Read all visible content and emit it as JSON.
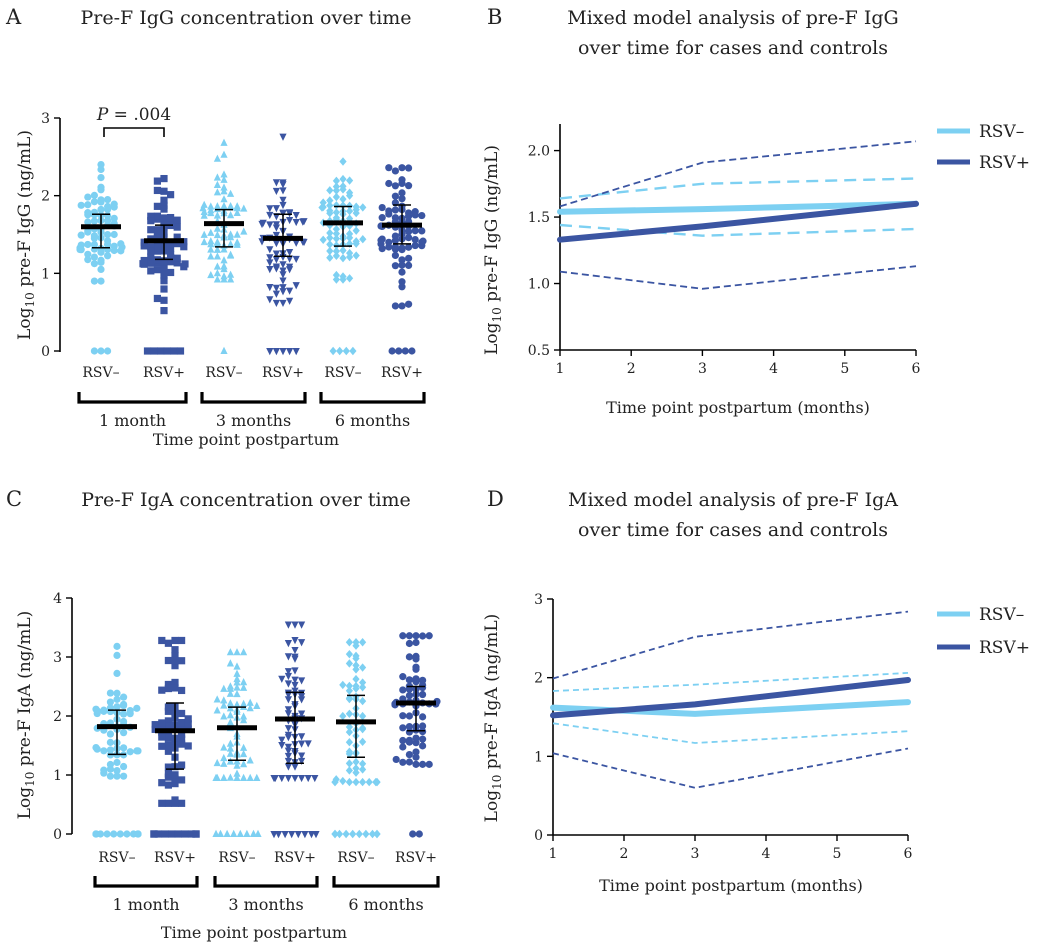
{
  "colors": {
    "rsv_neg": "#7dd0f2",
    "rsv_pos": "#3b55a2",
    "median": "#000000"
  },
  "chart_data": [
    {
      "panel": "A",
      "type": "scatter",
      "title": "Pre-F IgG concentration over time",
      "ylabel": "Log10 pre-F IgG (ng/mL)",
      "ylabel_main": "Log",
      "ylabel_sub": "10",
      "ylabel_rest": " pre-F IgG (ng/mL)",
      "xlabel": "Time point postpartum",
      "ylim": [
        0,
        3
      ],
      "yticks": [
        0,
        1,
        2,
        3
      ],
      "categories": [
        "RSV–",
        "RSV+",
        "RSV–",
        "RSV+",
        "RSV–",
        "RSV+"
      ],
      "timepoints": [
        "1 month",
        "3 months",
        "6 months"
      ],
      "annotation": {
        "p_italic": "P",
        "p_rest": " = .004"
      },
      "groups": [
        {
          "name": "RSV–",
          "timepoint": "1 month",
          "marker": "circle",
          "median": 1.6,
          "q1": 1.33,
          "q3": 1.76,
          "n": 70,
          "zeros": 3,
          "min": 0.9,
          "max": 2.4
        },
        {
          "name": "RSV+",
          "timepoint": "1 month",
          "marker": "square",
          "median": 1.42,
          "q1": 1.18,
          "q3": 1.62,
          "n": 68,
          "zeros": 6,
          "min": 0.52,
          "max": 2.22
        },
        {
          "name": "RSV–",
          "timepoint": "3 months",
          "marker": "triangle-up",
          "median": 1.64,
          "q1": 1.34,
          "q3": 1.82,
          "n": 72,
          "zeros": 1,
          "min": 0.92,
          "max": 2.68
        },
        {
          "name": "RSV+",
          "timepoint": "3 months",
          "marker": "triangle-down",
          "median": 1.45,
          "q1": 1.22,
          "q3": 1.76,
          "n": 72,
          "zeros": 5,
          "min": 0.62,
          "max": 2.76
        },
        {
          "name": "RSV–",
          "timepoint": "6 months",
          "marker": "diamond",
          "median": 1.65,
          "q1": 1.35,
          "q3": 1.86,
          "n": 74,
          "zeros": 4,
          "min": 0.92,
          "max": 2.44
        },
        {
          "name": "RSV+",
          "timepoint": "6 months",
          "marker": "circle",
          "median": 1.62,
          "q1": 1.38,
          "q3": 1.88,
          "n": 72,
          "zeros": 4,
          "min": 0.58,
          "max": 2.36
        }
      ]
    },
    {
      "panel": "B",
      "type": "line",
      "title_lines": [
        "Mixed model analysis of pre-F IgG",
        "over time for cases and controls"
      ],
      "ylabel": "Log10 pre-F IgG (ng/mL)",
      "ylabel_main": "Log",
      "ylabel_sub": "10",
      "ylabel_rest": " pre-F IgG (ng/mL)",
      "xlabel": "Time point postpartum (months)",
      "xlim": [
        1,
        6
      ],
      "xticks": [
        1,
        2,
        3,
        4,
        5,
        6
      ],
      "ylim": [
        0.5,
        2.2
      ],
      "yticks": [
        0.5,
        1.0,
        1.5,
        2.0
      ],
      "ytick_labels": [
        "0.5",
        "1.0",
        "1.5",
        "2.0"
      ],
      "x": [
        1,
        3,
        6
      ],
      "series": [
        {
          "name": "RSV–",
          "values": [
            1.54,
            1.56,
            1.6
          ],
          "lower": [
            1.44,
            1.36,
            1.41
          ],
          "upper": [
            1.64,
            1.75,
            1.79
          ]
        },
        {
          "name": "RSV+",
          "values": [
            1.33,
            1.43,
            1.6
          ],
          "lower": [
            1.09,
            0.96,
            1.13
          ],
          "upper": [
            1.58,
            1.91,
            2.07
          ]
        }
      ]
    },
    {
      "panel": "C",
      "type": "scatter",
      "title": "Pre-F IgA concentration over time",
      "ylabel": "Log10 pre-F IgA (ng/mL)",
      "ylabel_main": "Log",
      "ylabel_sub": "10",
      "ylabel_rest": " pre-F IgA (ng/mL)",
      "xlabel": "Time point postpartum",
      "ylim": [
        0,
        4
      ],
      "yticks": [
        0,
        1,
        2,
        3,
        4
      ],
      "categories": [
        "RSV–",
        "RSV+",
        "RSV–",
        "RSV+",
        "RSV–",
        "RSV+"
      ],
      "timepoints": [
        "1 month",
        "3 months",
        "6 months"
      ],
      "groups": [
        {
          "name": "RSV–",
          "timepoint": "1 month",
          "marker": "circle",
          "median": 1.82,
          "q1": 1.35,
          "q3": 2.1,
          "n": 60,
          "zeros": 14,
          "min": 0.98,
          "max": 3.18
        },
        {
          "name": "RSV+",
          "timepoint": "1 month",
          "marker": "square",
          "median": 1.75,
          "q1": 1.1,
          "q3": 2.22,
          "n": 66,
          "zeros": 12,
          "min": 0.52,
          "max": 3.28
        },
        {
          "name": "RSV–",
          "timepoint": "3 months",
          "marker": "triangle-up",
          "median": 1.8,
          "q1": 1.25,
          "q3": 2.15,
          "n": 66,
          "zeros": 8,
          "min": 0.95,
          "max": 3.08
        },
        {
          "name": "RSV+",
          "timepoint": "3 months",
          "marker": "triangle-down",
          "median": 1.95,
          "q1": 1.2,
          "q3": 2.4,
          "n": 66,
          "zeros": 8,
          "min": 0.95,
          "max": 3.55
        },
        {
          "name": "RSV–",
          "timepoint": "6 months",
          "marker": "diamond",
          "median": 1.9,
          "q1": 1.3,
          "q3": 2.35,
          "n": 62,
          "zeros": 10,
          "min": 0.88,
          "max": 3.25
        },
        {
          "name": "RSV+",
          "timepoint": "6 months",
          "marker": "circle",
          "median": 2.22,
          "q1": 1.75,
          "q3": 2.5,
          "n": 66,
          "zeros": 2,
          "min": 1.18,
          "max": 3.36
        }
      ]
    },
    {
      "panel": "D",
      "type": "line",
      "title_lines": [
        "Mixed model analysis of pre-F IgA",
        "over time for cases and controls"
      ],
      "ylabel": "Log10 pre-F IgA (ng/mL)",
      "ylabel_main": "Log",
      "ylabel_sub": "10",
      "ylabel_rest": " pre-F IgA (ng/mL)",
      "xlabel": "Time point postpartum (months)",
      "xlim": [
        1,
        6
      ],
      "xticks": [
        1,
        2,
        3,
        4,
        5,
        6
      ],
      "ylim": [
        0,
        3
      ],
      "yticks": [
        0,
        1,
        2,
        3
      ],
      "ytick_labels": [
        "0",
        "1",
        "2",
        "3"
      ],
      "x": [
        1,
        3,
        6
      ],
      "series": [
        {
          "name": "RSV–",
          "values": [
            1.62,
            1.54,
            1.69
          ],
          "lower": [
            1.42,
            1.17,
            1.32
          ],
          "upper": [
            1.83,
            1.91,
            2.06
          ]
        },
        {
          "name": "RSV+",
          "values": [
            1.52,
            1.66,
            1.97
          ],
          "lower": [
            1.04,
            0.6,
            1.1
          ],
          "upper": [
            1.99,
            2.52,
            2.84
          ]
        }
      ]
    }
  ]
}
